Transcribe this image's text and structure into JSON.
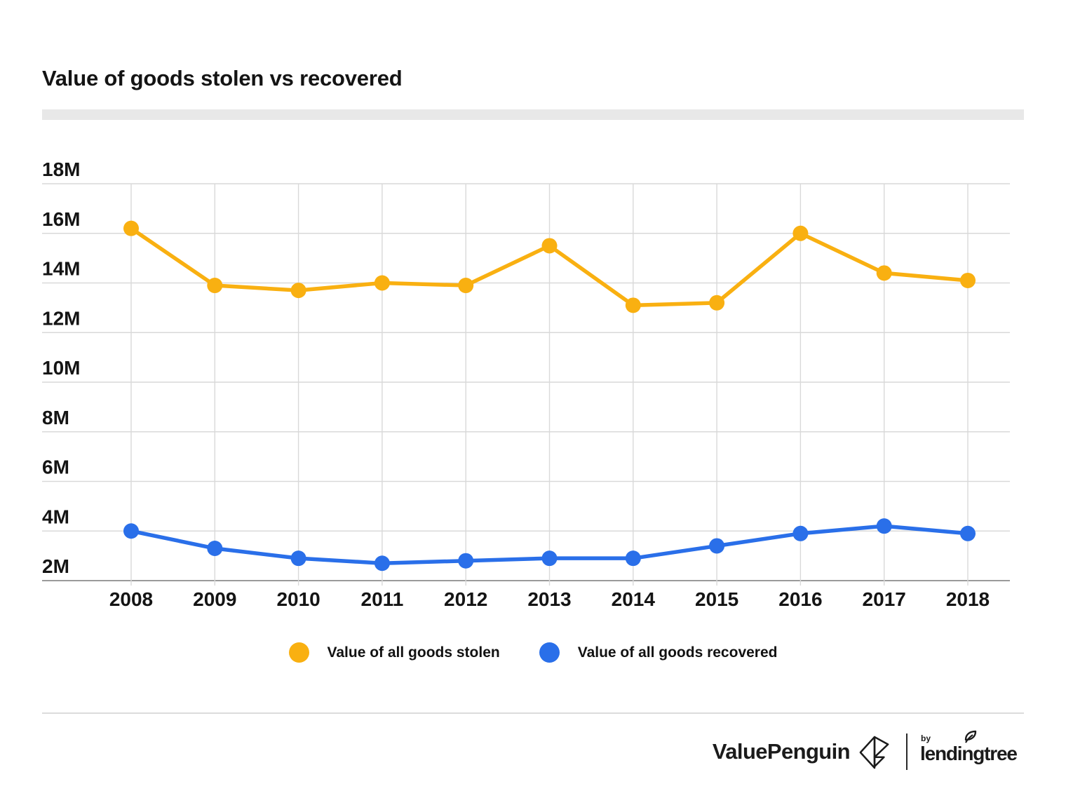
{
  "page": {
    "title": "Value of goods stolen vs recovered"
  },
  "chart_data": {
    "type": "line",
    "title": "Value of goods stolen vs recovered",
    "x": [
      2008,
      2009,
      2010,
      2011,
      2012,
      2013,
      2014,
      2015,
      2016,
      2017,
      2018
    ],
    "x_tick_labels": [
      "2008",
      "2009",
      "2010",
      "2011",
      "2012",
      "2013",
      "2014",
      "2015",
      "2016",
      "2017",
      "2018"
    ],
    "series": [
      {
        "name": "Value of all goods stolen",
        "color": "#F9B011",
        "values": [
          16.2,
          13.9,
          13.7,
          14.0,
          13.9,
          15.5,
          13.1,
          13.2,
          16.0,
          14.4,
          14.1
        ]
      },
      {
        "name": "Value of all goods recovered",
        "color": "#2A6FE9",
        "values": [
          4.0,
          3.3,
          2.9,
          2.7,
          2.8,
          2.9,
          2.9,
          3.4,
          3.9,
          4.2,
          3.9
        ]
      }
    ],
    "value_unit": "M",
    "ylim": [
      2,
      18
    ],
    "y_ticks": [
      2,
      4,
      6,
      8,
      10,
      12,
      14,
      16,
      18
    ],
    "y_tick_labels": [
      "2M",
      "4M",
      "6M",
      "8M",
      "10M",
      "12M",
      "14M",
      "16M",
      "18M"
    ],
    "grid": "on",
    "legend_position": "bottom",
    "colors": {
      "grid_line": "#d9d9d9",
      "axis_line": "#9a9a9a",
      "tick_text": "#141414"
    }
  },
  "legend": {
    "items": [
      {
        "label": "Value of all goods stolen"
      },
      {
        "label": "Value of all goods recovered"
      }
    ]
  },
  "footer": {
    "brand": "ValuePenguin",
    "by_label": "by",
    "partner": "lendingtree"
  }
}
